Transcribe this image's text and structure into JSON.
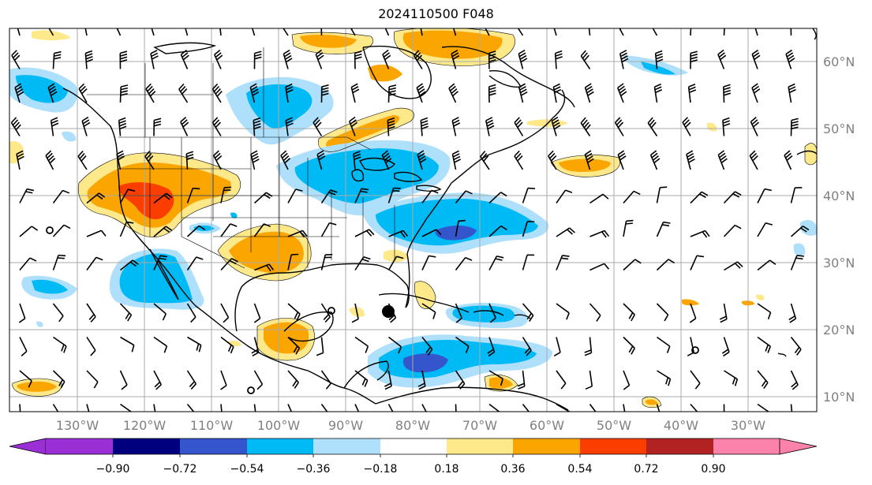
{
  "title": "2024110500 F048",
  "lon_labels": [
    "130°W",
    "120°W",
    "110°W",
    "100°W",
    "90°W",
    "80°W",
    "70°W",
    "60°W",
    "50°W",
    "40°W",
    "30°W"
  ],
  "lat_labels": [
    "60°N",
    "50°N",
    "40°N",
    "30°N",
    "20°N",
    "10°N"
  ],
  "colorbar": {
    "tick_labels": [
      "−0.90",
      "−0.72",
      "−0.54",
      "−0.36",
      "−0.18",
      "0.18",
      "0.36",
      "0.54",
      "0.72",
      "0.90"
    ],
    "colors": [
      "#9a2fd6",
      "#00007f",
      "#3555cd",
      "#00baf5",
      "#aee0fb",
      "#ffffff",
      "#fde88a",
      "#fba500",
      "#fb3d00",
      "#b22222",
      "#fb82aa"
    ]
  },
  "map_colors": {
    "light_blue": "#aee0fb",
    "blue": "#00baf5",
    "dark_blue": "#3555cd",
    "yellow": "#fde88a",
    "orange": "#fba500",
    "red_orange": "#fb3d00",
    "grid": "#aaaaaa"
  },
  "markers": {
    "storm_center": "large-dot"
  }
}
